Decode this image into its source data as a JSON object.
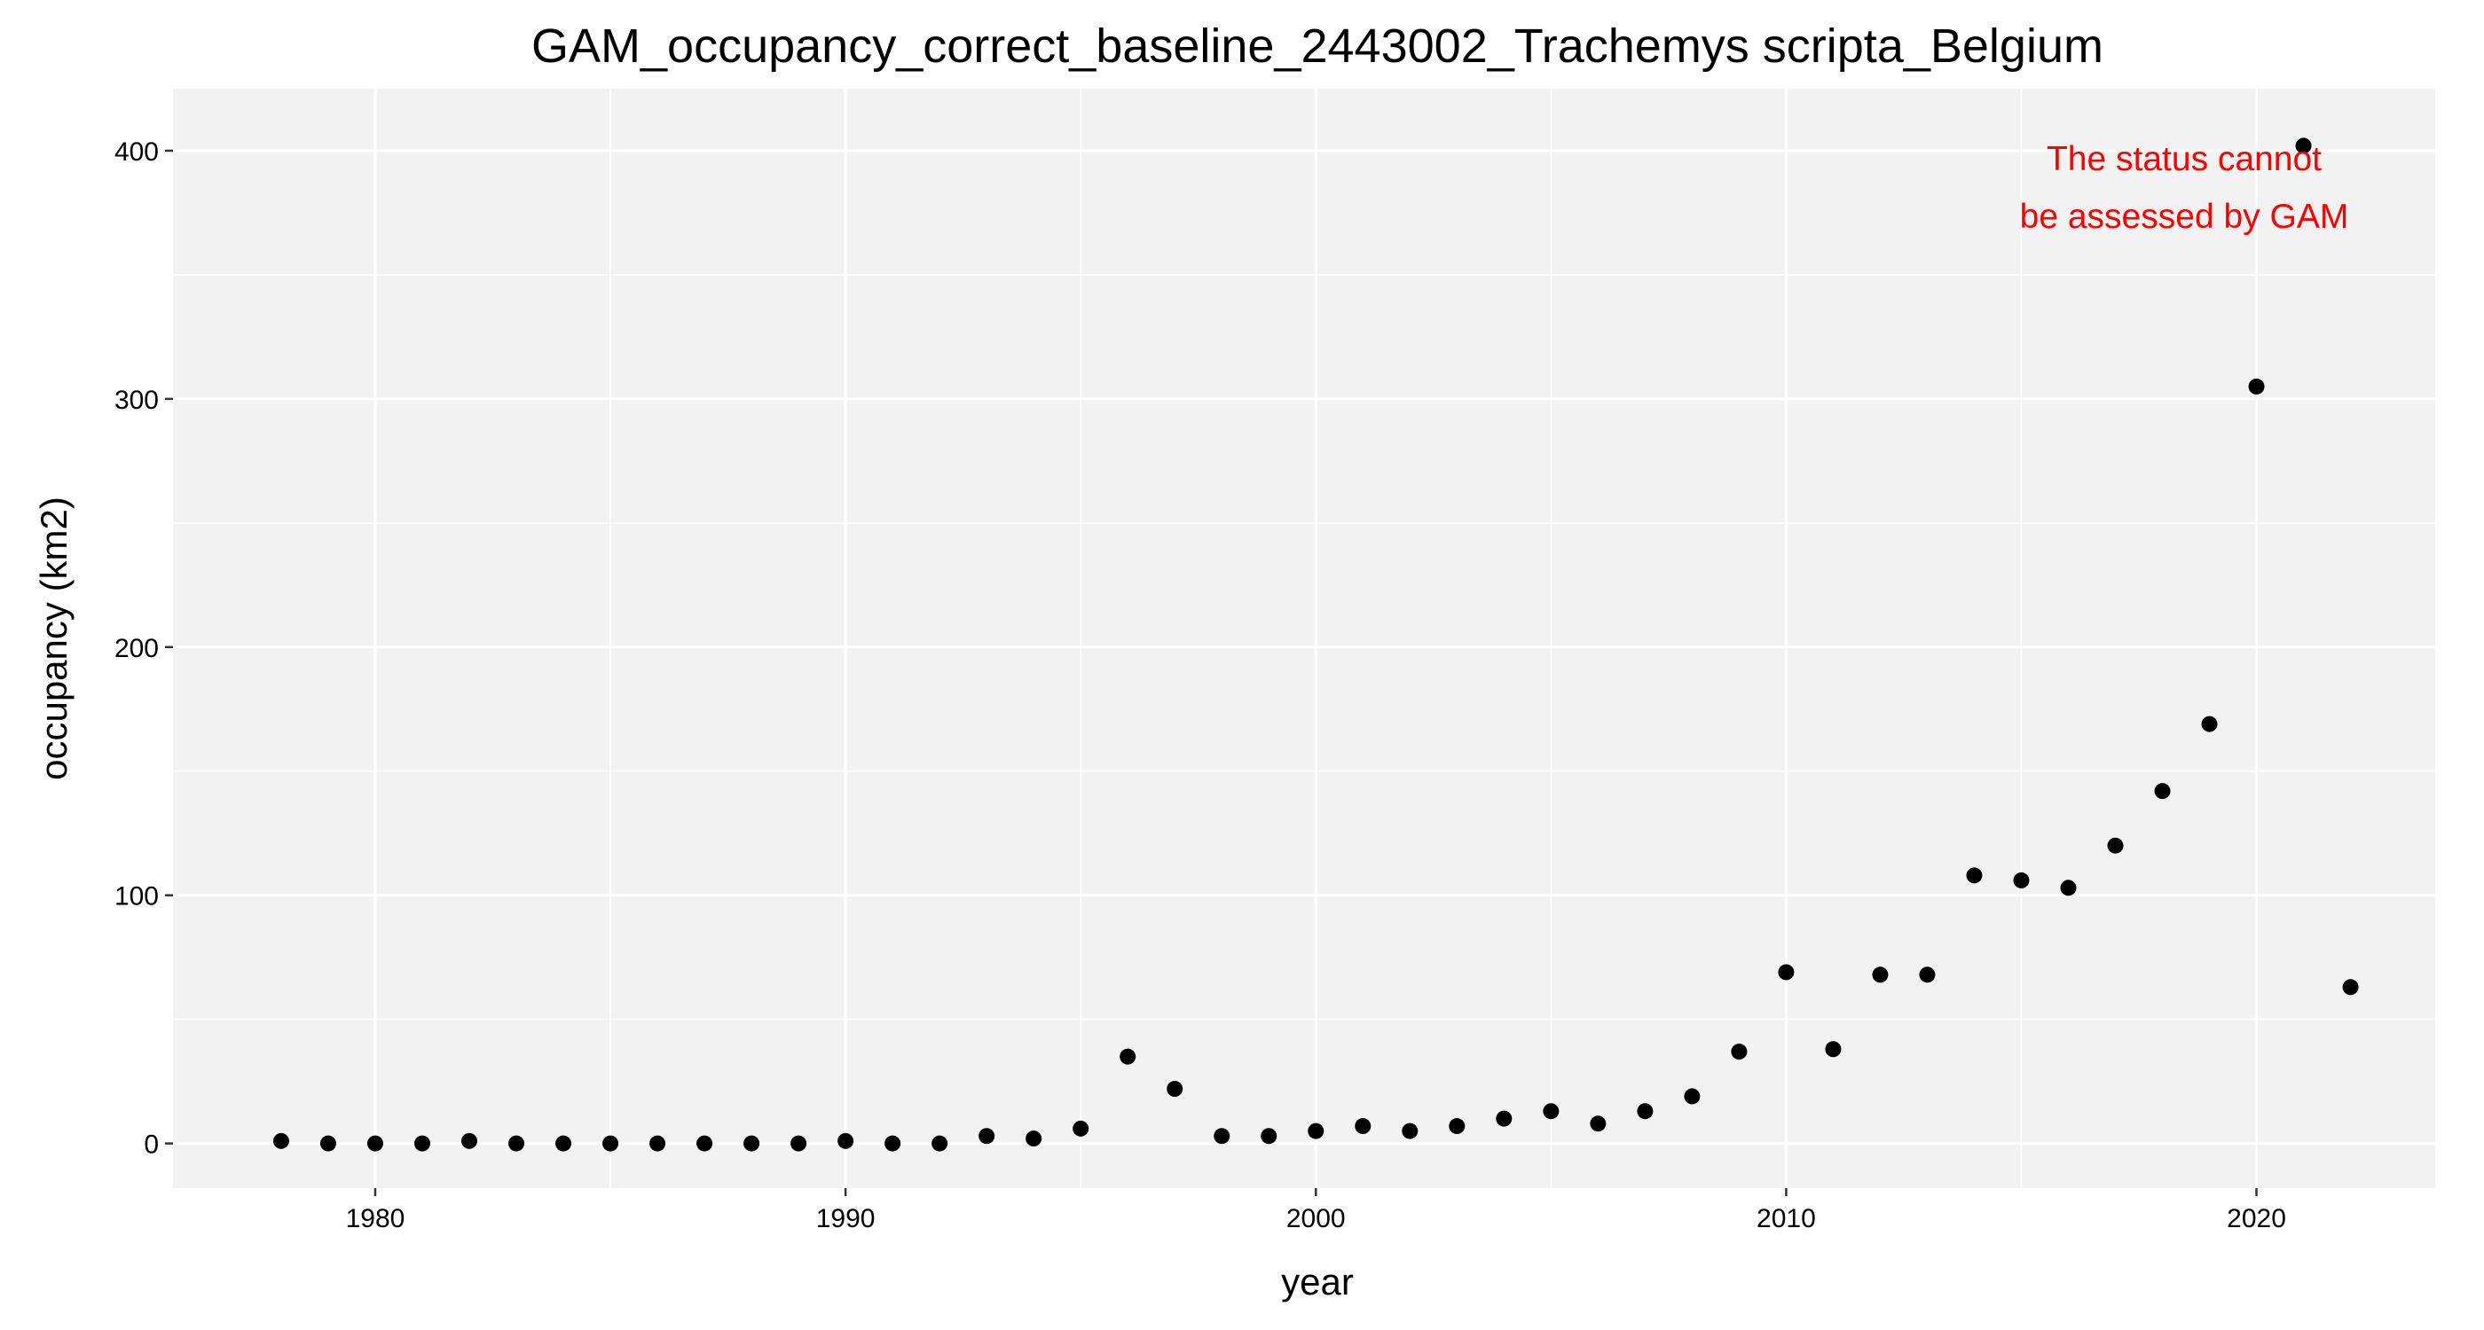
{
  "chart_data": {
    "type": "scatter",
    "title": "GAM_occupancy_correct_baseline_2443002_Trachemys scripta_Belgium",
    "xlabel": "year",
    "ylabel": "occupancy (km2)",
    "xlim": [
      1975.7,
      2023.8
    ],
    "ylim": [
      -18,
      425
    ],
    "xticks": [
      1980,
      1990,
      2000,
      2010,
      2020
    ],
    "yticks": [
      0,
      100,
      200,
      300,
      400
    ],
    "grid": true,
    "background_color": "#f2f2f2",
    "grid_color": "#ffffff",
    "point_color": "#000000",
    "annotation": {
      "lines": [
        "The status cannot",
        "be assessed by GAM"
      ],
      "color": "#ff0000"
    },
    "x": [
      1978,
      1979,
      1980,
      1981,
      1982,
      1983,
      1984,
      1985,
      1986,
      1987,
      1988,
      1989,
      1990,
      1991,
      1992,
      1993,
      1994,
      1995,
      1996,
      1997,
      1998,
      1999,
      2000,
      2001,
      2002,
      2003,
      2004,
      2005,
      2006,
      2007,
      2008,
      2009,
      2010,
      2011,
      2012,
      2013,
      2014,
      2015,
      2016,
      2017,
      2018,
      2019,
      2020,
      2021,
      2022
    ],
    "y": [
      1,
      0,
      0,
      0,
      1,
      0,
      0,
      0,
      0,
      0,
      0,
      0,
      1,
      0,
      0,
      3,
      2,
      6,
      35,
      22,
      3,
      3,
      5,
      7,
      5,
      7,
      10,
      13,
      8,
      13,
      19,
      37,
      69,
      38,
      68,
      68,
      108,
      106,
      103,
      120,
      142,
      169,
      305,
      402,
      63
    ]
  }
}
